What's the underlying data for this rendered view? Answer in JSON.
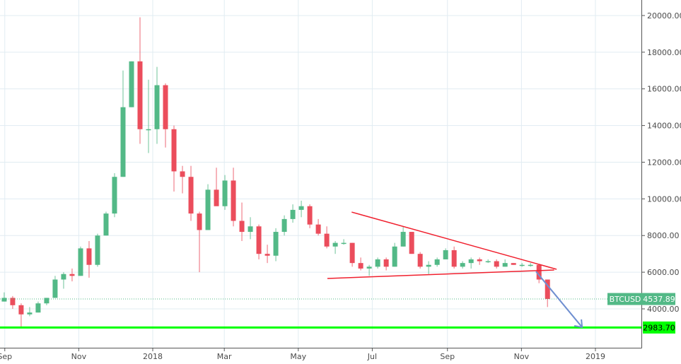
{
  "chart_data": {
    "type": "candlestick",
    "symbol": "BTCUSD",
    "last_price_label": "4537.89",
    "target_label": "2983.70",
    "ylim": [
      2000,
      20500
    ],
    "y_ticks": [
      4000,
      6000,
      8000,
      10000,
      12000,
      14000,
      16000,
      18000,
      20000
    ],
    "y_tick_labels": [
      "4000.00",
      "6000.00",
      "8000.00",
      "10000.00",
      "12000.00",
      "14000.00",
      "16000.00",
      "18000.00",
      "20000.00"
    ],
    "x_ticks": [
      {
        "date": "2017-09-01",
        "label": "Sep"
      },
      {
        "date": "2017-11-01",
        "label": "Nov"
      },
      {
        "date": "2018-01-01",
        "label": "2018"
      },
      {
        "date": "2018-03-01",
        "label": "Mar"
      },
      {
        "date": "2018-05-01",
        "label": "May"
      },
      {
        "date": "2018-07-01",
        "label": "Jul"
      },
      {
        "date": "2018-09-01",
        "label": "Sep"
      },
      {
        "date": "2018-11-01",
        "label": "Nov"
      },
      {
        "date": "2019-01-01",
        "label": "2019"
      }
    ],
    "grid": true,
    "colors": {
      "up": "#53b987",
      "down": "#eb4d5c",
      "grid": "#e1ecf2",
      "target": "#00ff00",
      "trend": "#f0202e",
      "arrow": "#6f8fd0"
    },
    "ohlc": [
      [
        "2017-08-28",
        4400,
        4900,
        4400,
        4600
      ],
      [
        "2017-09-04",
        4600,
        4700,
        4000,
        4200
      ],
      [
        "2017-09-11",
        4200,
        4300,
        3000,
        3700
      ],
      [
        "2017-09-18",
        3700,
        4100,
        3600,
        3800
      ],
      [
        "2017-09-25",
        3800,
        4400,
        3800,
        4300
      ],
      [
        "2017-10-02",
        4300,
        4600,
        4200,
        4600
      ],
      [
        "2017-10-09",
        4600,
        5800,
        4600,
        5600
      ],
      [
        "2017-10-16",
        5600,
        6000,
        5100,
        5900
      ],
      [
        "2017-10-23",
        5900,
        6200,
        5500,
        5800
      ],
      [
        "2017-10-30",
        5800,
        7400,
        5800,
        7300
      ],
      [
        "2017-11-06",
        7300,
        7700,
        5700,
        6400
      ],
      [
        "2017-11-13",
        6400,
        8100,
        6300,
        8000
      ],
      [
        "2017-11-20",
        8000,
        9300,
        8000,
        9200
      ],
      [
        "2017-11-27",
        9200,
        11400,
        9000,
        11200
      ],
      [
        "2017-12-04",
        11200,
        17000,
        11200,
        15000
      ],
      [
        "2017-12-11",
        15000,
        17500,
        15000,
        17500
      ],
      [
        "2017-12-18",
        17500,
        19900,
        13000,
        13800
      ],
      [
        "2017-12-25",
        13800,
        16500,
        12500,
        13800
      ],
      [
        "2018-01-01",
        13800,
        17200,
        13000,
        16200
      ],
      [
        "2018-01-08",
        16200,
        16300,
        12800,
        13800
      ],
      [
        "2018-01-15",
        13800,
        14000,
        10400,
        11500
      ],
      [
        "2018-01-22",
        11500,
        11800,
        10300,
        11200
      ],
      [
        "2018-01-29",
        11200,
        11800,
        8800,
        9200
      ],
      [
        "2018-02-05",
        9200,
        9300,
        6000,
        8300
      ],
      [
        "2018-02-12",
        8300,
        10800,
        8300,
        10500
      ],
      [
        "2018-02-19",
        10500,
        11700,
        9700,
        9600
      ],
      [
        "2018-02-26",
        9600,
        11300,
        9400,
        11000
      ],
      [
        "2018-03-05",
        11000,
        11700,
        8500,
        8800
      ],
      [
        "2018-03-12",
        8800,
        9800,
        7700,
        8200
      ],
      [
        "2018-03-19",
        8200,
        9000,
        7800,
        8500
      ],
      [
        "2018-03-26",
        8500,
        8600,
        6700,
        7000
      ],
      [
        "2018-04-02",
        7000,
        7500,
        6500,
        6900
      ],
      [
        "2018-04-09",
        6900,
        8400,
        6600,
        8200
      ],
      [
        "2018-04-16",
        8200,
        9100,
        8000,
        8900
      ],
      [
        "2018-04-23",
        8900,
        9700,
        8700,
        9400
      ],
      [
        "2018-04-30",
        9400,
        9900,
        9000,
        9600
      ],
      [
        "2018-05-07",
        9600,
        9700,
        8400,
        8600
      ],
      [
        "2018-05-14",
        8600,
        8900,
        8000,
        8100
      ],
      [
        "2018-05-21",
        8100,
        8500,
        7300,
        7400
      ],
      [
        "2018-05-28",
        7400,
        7700,
        7000,
        7600
      ],
      [
        "2018-06-04",
        7600,
        7800,
        7500,
        7600
      ],
      [
        "2018-06-11",
        7600,
        7600,
        6300,
        6500
      ],
      [
        "2018-06-18",
        6500,
        6800,
        6100,
        6200
      ],
      [
        "2018-06-25",
        6200,
        6400,
        5800,
        6300
      ],
      [
        "2018-07-02",
        6300,
        6800,
        6200,
        6700
      ],
      [
        "2018-07-09",
        6700,
        6800,
        6100,
        6300
      ],
      [
        "2018-07-16",
        6300,
        7600,
        6300,
        7400
      ],
      [
        "2018-07-23",
        7400,
        8500,
        7400,
        8200
      ],
      [
        "2018-07-30",
        8200,
        8200,
        7000,
        7000
      ],
      [
        "2018-08-06",
        7000,
        7100,
        6200,
        6300
      ],
      [
        "2018-08-13",
        6300,
        6600,
        5900,
        6400
      ],
      [
        "2018-08-20",
        6400,
        6800,
        6300,
        6700
      ],
      [
        "2018-08-27",
        6700,
        7300,
        6700,
        7200
      ],
      [
        "2018-09-03",
        7200,
        7400,
        6200,
        6300
      ],
      [
        "2018-09-10",
        6300,
        6600,
        6200,
        6500
      ],
      [
        "2018-09-17",
        6500,
        6800,
        6200,
        6700
      ],
      [
        "2018-09-24",
        6700,
        6800,
        6400,
        6600
      ],
      [
        "2018-10-01",
        6600,
        6700,
        6500,
        6600
      ],
      [
        "2018-10-08",
        6600,
        6700,
        6200,
        6300
      ],
      [
        "2018-10-15",
        6300,
        6700,
        6300,
        6500
      ],
      [
        "2018-10-22",
        6500,
        6500,
        6400,
        6400
      ],
      [
        "2018-10-29",
        6400,
        6500,
        6300,
        6400
      ],
      [
        "2018-11-05",
        6400,
        6500,
        6300,
        6400
      ],
      [
        "2018-11-12",
        6400,
        6400,
        5400,
        5600
      ],
      [
        "2018-11-19",
        5600,
        5600,
        4100,
        4538
      ]
    ],
    "annotations": {
      "resistance_line": [
        [
          "2018-06-14",
          9280
        ],
        [
          "2018-11-30",
          6160
        ]
      ],
      "support_line": [
        [
          "2018-05-25",
          5660
        ],
        [
          "2018-11-28",
          6120
        ]
      ],
      "projection_arrow": [
        [
          "2018-11-13",
          6040
        ],
        [
          "2018-12-21",
          3000
        ]
      ],
      "target_level": 2983.7,
      "last_price": 4537.89
    }
  }
}
